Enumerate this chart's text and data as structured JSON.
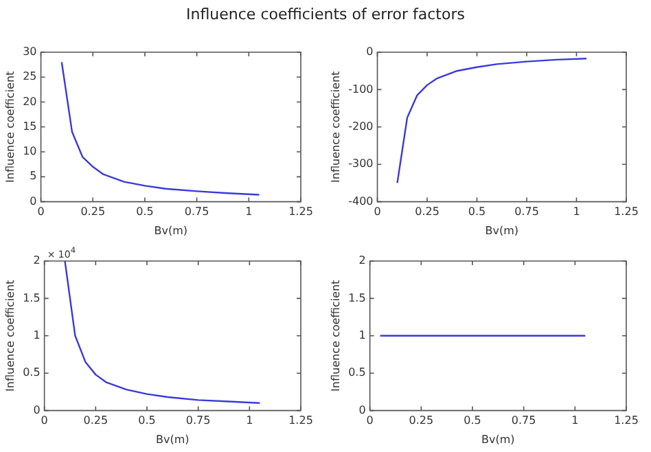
{
  "chart_data": [
    {
      "type": "line",
      "title": "Influence coefficients of error factors",
      "xlabel": "Bv(m)",
      "ylabel": "Influence coefficient",
      "x": [
        0.1,
        0.15,
        0.2,
        0.25,
        0.3,
        0.4,
        0.5,
        0.6,
        0.75,
        0.9,
        1.05
      ],
      "series": [
        {
          "color": "#3a3ad8",
          "values": [
            28,
            14,
            9,
            7,
            5.5,
            4,
            3.2,
            2.6,
            2.1,
            1.7,
            1.4
          ]
        }
      ],
      "xlim": [
        0,
        1.25
      ],
      "xticks": [
        0,
        0.25,
        0.5,
        0.75,
        1,
        1.25
      ],
      "ylim": [
        0,
        30
      ],
      "yticks": [
        0,
        5,
        10,
        15,
        20,
        25,
        30
      ],
      "grid": false,
      "legend": false,
      "marker": "none"
    },
    {
      "type": "line",
      "xlabel": "Bv(m)",
      "ylabel": "Influence coefficient",
      "x": [
        0.1,
        0.15,
        0.2,
        0.25,
        0.3,
        0.4,
        0.5,
        0.6,
        0.75,
        0.9,
        1.05
      ],
      "series": [
        {
          "color": "#3a3ad8",
          "values": [
            -350,
            -175,
            -115,
            -88,
            -70,
            -50,
            -40,
            -32,
            -25,
            -20,
            -17
          ]
        }
      ],
      "xlim": [
        0,
        1.25
      ],
      "xticks": [
        0,
        0.25,
        0.5,
        0.75,
        1,
        1.25
      ],
      "ylim": [
        -400,
        0
      ],
      "yticks": [
        -400,
        -300,
        -200,
        -100,
        0
      ],
      "grid": false,
      "legend": false,
      "marker": "none"
    },
    {
      "type": "line",
      "xlabel": "Bv(m)",
      "ylabel": "Influence coefficient",
      "annotations": [
        "× 10$^{4}$"
      ],
      "x": [
        0.1,
        0.15,
        0.2,
        0.25,
        0.3,
        0.4,
        0.5,
        0.6,
        0.75,
        0.9,
        1.05
      ],
      "series": [
        {
          "color": "#3a3ad8",
          "values": [
            2,
            1,
            0.65,
            0.48,
            0.38,
            0.28,
            0.22,
            0.18,
            0.14,
            0.12,
            0.1
          ]
        }
      ],
      "xlim": [
        0,
        1.25
      ],
      "xticks": [
        0,
        0.25,
        0.5,
        0.75,
        1,
        1.25
      ],
      "ylim": [
        0,
        2
      ],
      "yticks": [
        0,
        0.5,
        1,
        1.5,
        2
      ],
      "grid": false,
      "legend": false,
      "marker": "none"
    },
    {
      "type": "line",
      "xlabel": "Bv(m)",
      "ylabel": "Influence coefficient",
      "x": [
        0.05,
        1.05
      ],
      "series": [
        {
          "color": "#3a3ad8",
          "values": [
            1,
            1
          ]
        }
      ],
      "xlim": [
        0,
        1.25
      ],
      "xticks": [
        0,
        0.25,
        0.5,
        0.75,
        1,
        1.25
      ],
      "ylim": [
        0,
        2
      ],
      "yticks": [
        0,
        0.5,
        1,
        1.5,
        2
      ],
      "grid": false,
      "legend": false,
      "marker": "none"
    }
  ]
}
